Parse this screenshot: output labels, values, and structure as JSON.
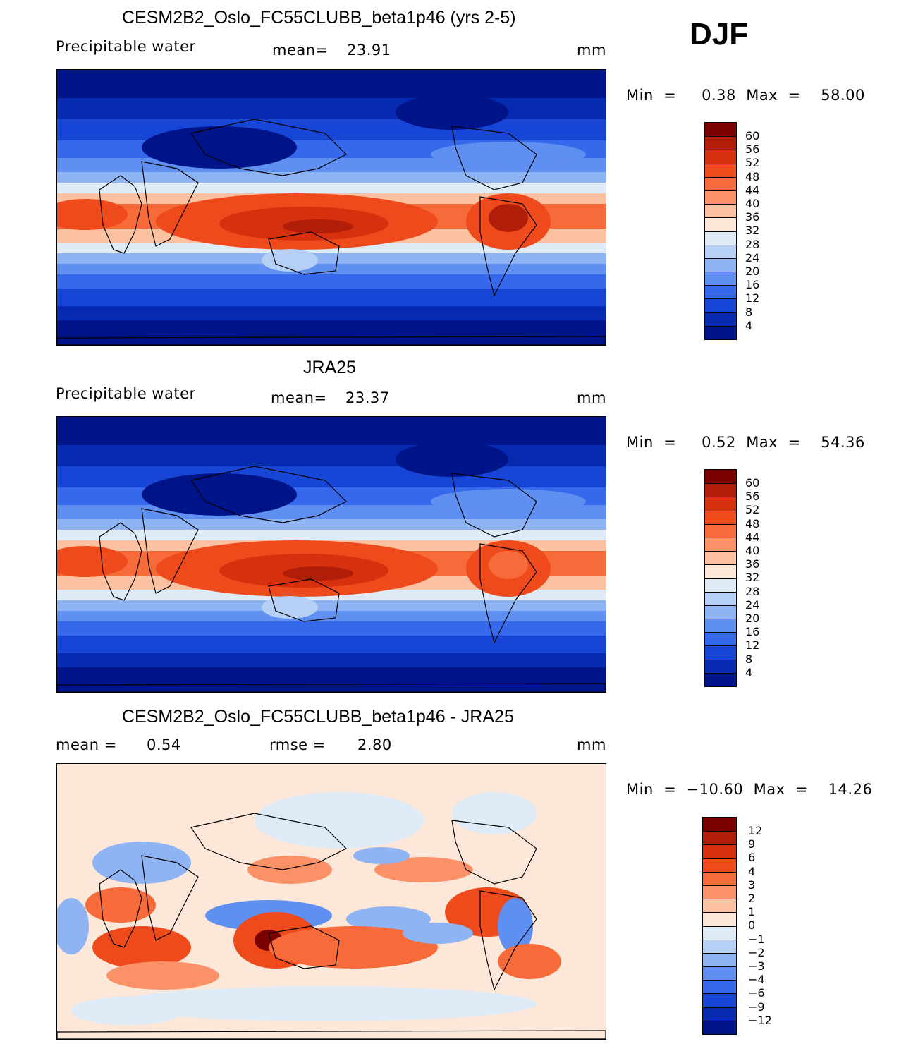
{
  "season": "DJF",
  "panels": [
    {
      "title": "CESM2B2_Oslo_FC55CLUBB_beta1p46 (yrs 2-5)",
      "left_label": "Precipitable  water",
      "mean_label": "mean=",
      "mean_value": "23.91",
      "units": "mm",
      "minmax_text": "Min  =     0.38  Max  =    58.00",
      "field": "precip"
    },
    {
      "title": "JRA25",
      "left_label": "Precipitable  water",
      "mean_label": "mean=",
      "mean_value": "23.37",
      "units": "mm",
      "minmax_text": "Min  =     0.52  Max  =    54.36",
      "field": "precip"
    },
    {
      "title": "CESM2B2_Oslo_FC55CLUBB_beta1p46 - JRA25",
      "left_label": "mean  =",
      "mean_value": "0.54",
      "rmse_label": "rmse  =",
      "rmse_value": "2.80",
      "units": "mm",
      "minmax_text": "Min  =  −10.60  Max  =    14.26",
      "field": "diff"
    }
  ],
  "chart_data": [
    {
      "type": "heatmap",
      "title": "CESM2B2_Oslo_FC55CLUBB_beta1p46 (yrs 2-5)",
      "variable": "Precipitable water",
      "units": "mm",
      "mean": 23.91,
      "min": 0.38,
      "max": 58.0,
      "colorbar_levels": [
        "60",
        "56",
        "52",
        "48",
        "44",
        "40",
        "36",
        "32",
        "28",
        "24",
        "20",
        "16",
        "12",
        "8",
        "4"
      ],
      "colorbar_colors": [
        "#7a0000",
        "#b01e0a",
        "#d7300f",
        "#ee4a1c",
        "#f76a3a",
        "#fb9167",
        "#fcc1a0",
        "#fde7d8",
        "#deebf7",
        "#b5cff5",
        "#8fb4f3",
        "#5f8ff0",
        "#3568eb",
        "#1746d6",
        "#062bb0",
        "#00148a"
      ]
    },
    {
      "type": "heatmap",
      "title": "JRA25",
      "variable": "Precipitable water",
      "units": "mm",
      "mean": 23.37,
      "min": 0.52,
      "max": 54.36,
      "colorbar_levels": [
        "60",
        "56",
        "52",
        "48",
        "44",
        "40",
        "36",
        "32",
        "28",
        "24",
        "20",
        "16",
        "12",
        "8",
        "4"
      ]
    },
    {
      "type": "heatmap",
      "title": "CESM2B2_Oslo_FC55CLUBB_beta1p46 - JRA25",
      "units": "mm",
      "mean": 0.54,
      "rmse": 2.8,
      "min": -10.6,
      "max": 14.26,
      "colorbar_levels": [
        "12",
        "9",
        "6",
        "4",
        "3",
        "2",
        "1",
        "0",
        "−1",
        "−2",
        "−3",
        "−4",
        "−6",
        "−9",
        "−12"
      ],
      "colorbar_colors": [
        "#7a0000",
        "#b01e0a",
        "#d7300f",
        "#ee4a1c",
        "#f76a3a",
        "#fb9167",
        "#fcc1a0",
        "#fde7d8",
        "#deebf7",
        "#b5cff5",
        "#8fb4f3",
        "#5f8ff0",
        "#3568eb",
        "#1746d6",
        "#062bb0",
        "#00148a"
      ]
    }
  ]
}
